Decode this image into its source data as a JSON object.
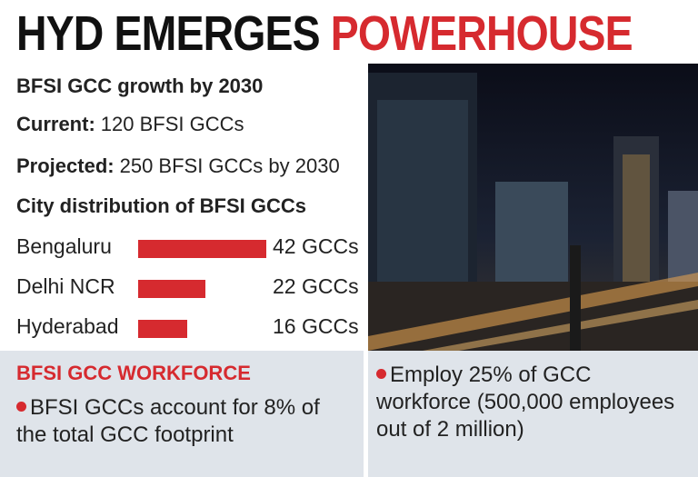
{
  "header": {
    "title_dark": "HYD EMERGES",
    "title_red": "POWERHOUSE"
  },
  "stats": {
    "heading": "BFSI GCC growth by 2030",
    "current": {
      "label": "Current:",
      "text": "120 BFSI GCCs"
    },
    "projected": {
      "label": "Projected:",
      "text": "250 BFSI GCCs by 2030"
    }
  },
  "chart_data": {
    "type": "bar",
    "orientation": "horizontal",
    "title": "City distribution of BFSI GCCs",
    "categories": [
      "Bengaluru",
      "Delhi NCR",
      "Hyderabad"
    ],
    "values": [
      42,
      22,
      16
    ],
    "value_labels": [
      "42 GCCs",
      "22 GCCs",
      "16 GCCs"
    ],
    "color": "#d62a2f"
  },
  "workforce": {
    "heading": "BFSI GCC WORKFORCE",
    "bullets": [
      "BFSI GCCs account for 8% of the total GCC footprint",
      "Employ 25% of GCC workforce (500,000 employees out of 2 million)"
    ]
  }
}
